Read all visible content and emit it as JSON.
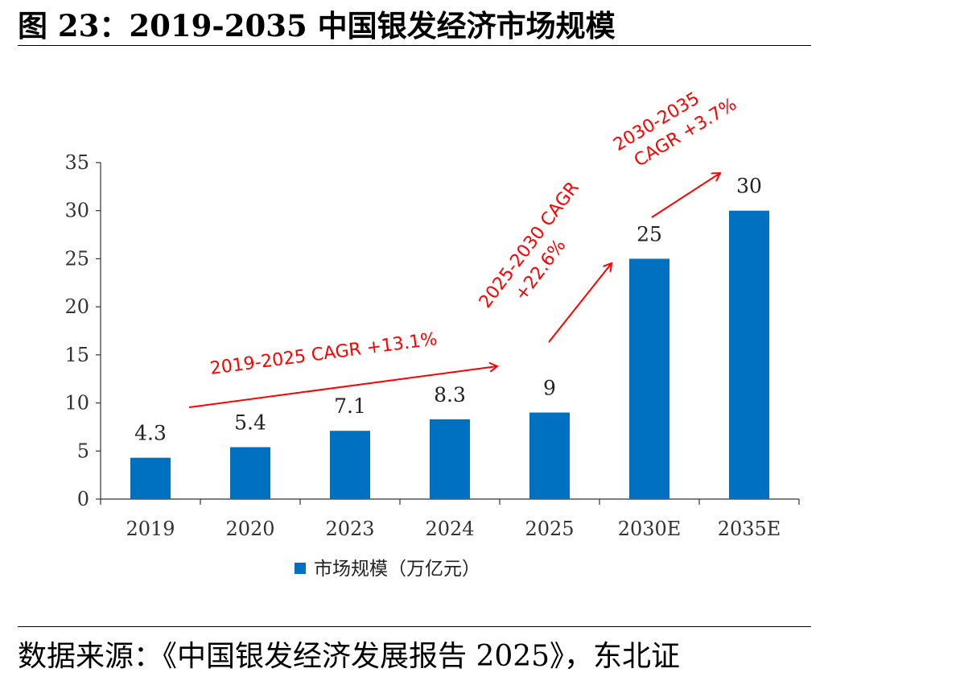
{
  "figure": {
    "title": "图 23：2019-2035 中国银发经济市场规模",
    "source": "数据来源：《中国银发经济发展报告 2025》，东北证"
  },
  "colors": {
    "bar": "#0070c0",
    "annotation": "#ff0000",
    "axis": "#333333"
  },
  "chart_data": {
    "type": "bar",
    "categories": [
      "2019",
      "2020",
      "2023",
      "2024",
      "2025",
      "2030E",
      "2035E"
    ],
    "series": [
      {
        "name": "市场规模（万亿元）",
        "values": [
          4.3,
          5.4,
          7.1,
          8.3,
          9,
          25,
          30
        ]
      }
    ],
    "data_labels": [
      "4.3",
      "5.4",
      "7.1",
      "8.3",
      "9",
      "25",
      "30"
    ],
    "y_ticks": [
      "0",
      "5",
      "10",
      "15",
      "20",
      "25",
      "30",
      "35"
    ],
    "ylim": [
      0,
      35
    ],
    "legend": "bottom",
    "grid": false,
    "annotations": [
      {
        "text": "2019-2025 CAGR +13.1%"
      },
      {
        "text_lines": [
          "2025-2030 CAGR",
          "+22.6%"
        ]
      },
      {
        "text_lines": [
          "2030-2035",
          "CAGR +3.7%"
        ]
      }
    ]
  }
}
